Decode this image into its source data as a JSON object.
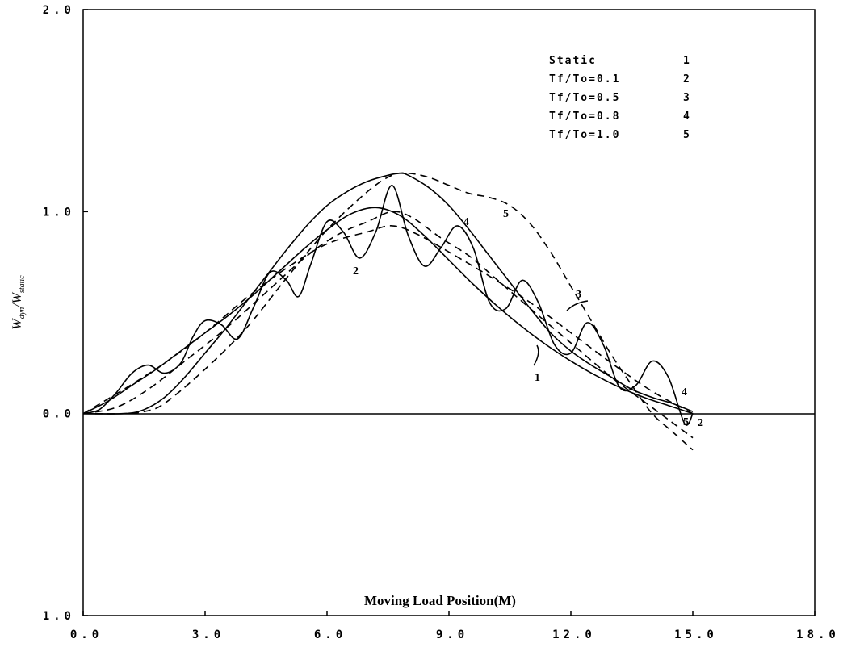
{
  "chart_data": {
    "type": "line",
    "xlabel": "Moving Load Position(M)",
    "ylabel_main": "W",
    "ylabel_sub1": "dyn",
    "ylabel_sep": "/W",
    "ylabel_sub2": "static",
    "xlim": [
      0,
      18
    ],
    "ylim": [
      -1,
      2
    ],
    "x_ticks": [
      {
        "value": 0,
        "label": "0.0"
      },
      {
        "value": 3,
        "label": "3.0"
      },
      {
        "value": 6,
        "label": "6.0"
      },
      {
        "value": 9,
        "label": "9.0"
      },
      {
        "value": 12,
        "label": "12.0"
      },
      {
        "value": 15,
        "label": "15.0"
      },
      {
        "value": 18,
        "label": "18.0"
      }
    ],
    "y_ticks": [
      {
        "value": 2,
        "label": "2.0"
      },
      {
        "value": 1,
        "label": "1.0"
      },
      {
        "value": 0,
        "label": "0.0"
      },
      {
        "value": -1,
        "label": "1.0"
      }
    ],
    "legend": [
      {
        "name": "Static",
        "id": "1"
      },
      {
        "name": "Tf/To=0.1",
        "id": "2"
      },
      {
        "name": "Tf/To=0.5",
        "id": "3"
      },
      {
        "name": "Tf/To=0.8",
        "id": "4"
      },
      {
        "name": "Tf/To=1.0",
        "id": "5"
      }
    ],
    "series": [
      {
        "id": "1",
        "style": "solid",
        "x": [
          0,
          0.6,
          1.2,
          1.8,
          2.4,
          3.0,
          3.6,
          4.2,
          4.8,
          5.4,
          6.0,
          6.6,
          7.2,
          7.8,
          8.4,
          9.0,
          9.6,
          10.2,
          10.8,
          11.4,
          12.0,
          12.6,
          13.2,
          13.8,
          14.4,
          15.0
        ],
        "y": [
          0,
          0.06,
          0.14,
          0.22,
          0.31,
          0.4,
          0.49,
          0.59,
          0.7,
          0.81,
          0.91,
          0.99,
          1.02,
          0.98,
          0.88,
          0.76,
          0.64,
          0.53,
          0.43,
          0.34,
          0.26,
          0.19,
          0.13,
          0.08,
          0.04,
          0
        ]
      },
      {
        "id": "2",
        "style": "solid",
        "x": [
          0,
          0.4,
          0.8,
          1.2,
          1.6,
          2.0,
          2.4,
          2.7,
          3.0,
          3.4,
          3.8,
          4.2,
          4.6,
          5.0,
          5.3,
          5.6,
          6.0,
          6.4,
          6.8,
          7.2,
          7.6,
          8.0,
          8.4,
          8.8,
          9.2,
          9.6,
          10.0,
          10.4,
          10.8,
          11.2,
          11.6,
          12.0,
          12.4,
          12.8,
          13.2,
          13.6,
          14.0,
          14.4,
          14.8,
          15.0
        ],
        "y": [
          0,
          0.02,
          0.1,
          0.2,
          0.24,
          0.2,
          0.25,
          0.38,
          0.46,
          0.44,
          0.37,
          0.53,
          0.7,
          0.66,
          0.58,
          0.74,
          0.95,
          0.9,
          0.77,
          0.9,
          1.13,
          0.88,
          0.73,
          0.82,
          0.93,
          0.82,
          0.55,
          0.52,
          0.66,
          0.55,
          0.34,
          0.3,
          0.45,
          0.34,
          0.13,
          0.14,
          0.26,
          0.18,
          -0.05,
          0
        ]
      },
      {
        "id": "3",
        "style": "dashed",
        "x": [
          0,
          1.0,
          2.0,
          3.0,
          4.0,
          5.0,
          6.0,
          7.0,
          7.6,
          8.2,
          9.0,
          10.0,
          11.0,
          12.0,
          13.0,
          14.0,
          15.0
        ],
        "y": [
          0,
          0.12,
          0.25,
          0.4,
          0.57,
          0.72,
          0.84,
          0.9,
          0.93,
          0.89,
          0.8,
          0.68,
          0.55,
          0.4,
          0.25,
          0.11,
          0
        ]
      },
      {
        "id": "4",
        "style": "solid",
        "x": [
          0,
          1.0,
          1.5,
          2.0,
          2.5,
          3.0,
          3.5,
          4.0,
          4.5,
          5.0,
          5.5,
          6.0,
          6.5,
          7.0,
          7.5,
          7.8,
          8.0,
          8.5,
          9.0,
          9.5,
          10.0,
          10.5,
          11.0,
          11.5,
          12.0,
          12.5,
          13.0,
          13.5,
          14.0,
          14.5,
          15.0
        ],
        "y": [
          0,
          0,
          0.02,
          0.08,
          0.18,
          0.3,
          0.42,
          0.55,
          0.68,
          0.81,
          0.93,
          1.03,
          1.1,
          1.15,
          1.18,
          1.19,
          1.18,
          1.12,
          1.03,
          0.91,
          0.78,
          0.65,
          0.52,
          0.4,
          0.31,
          0.24,
          0.18,
          0.12,
          0.08,
          0.05,
          0.01
        ]
      },
      {
        "id": "5",
        "style": "dashed",
        "x": [
          0,
          1.0,
          1.5,
          2.0,
          3.0,
          4.0,
          5.0,
          6.0,
          7.0,
          7.6,
          8.0,
          8.5,
          9.0,
          9.5,
          10.0,
          10.5,
          11.0,
          11.5,
          12.0,
          12.5,
          13.0,
          13.5,
          14.0,
          14.5,
          15.0
        ],
        "y": [
          0,
          0,
          0.01,
          0.05,
          0.22,
          0.42,
          0.67,
          0.91,
          1.1,
          1.18,
          1.19,
          1.17,
          1.13,
          1.09,
          1.07,
          1.03,
          0.94,
          0.8,
          0.63,
          0.46,
          0.29,
          0.14,
          0.0,
          -0.09,
          -0.18
        ]
      },
      {
        "id": "5b",
        "style": "dashed",
        "x": [
          0,
          0.8,
          1.6,
          2.5,
          3.5,
          4.5,
          5.5,
          6.3,
          7.0,
          7.6,
          8.1,
          8.8,
          9.5,
          10.2,
          11.0,
          12.0,
          13.0,
          14.0,
          15.0
        ],
        "y": [
          0,
          0.03,
          0.12,
          0.26,
          0.42,
          0.6,
          0.78,
          0.89,
          0.95,
          1.0,
          0.97,
          0.87,
          0.78,
          0.66,
          0.52,
          0.35,
          0.18,
          0.03,
          -0.12
        ]
      }
    ]
  }
}
